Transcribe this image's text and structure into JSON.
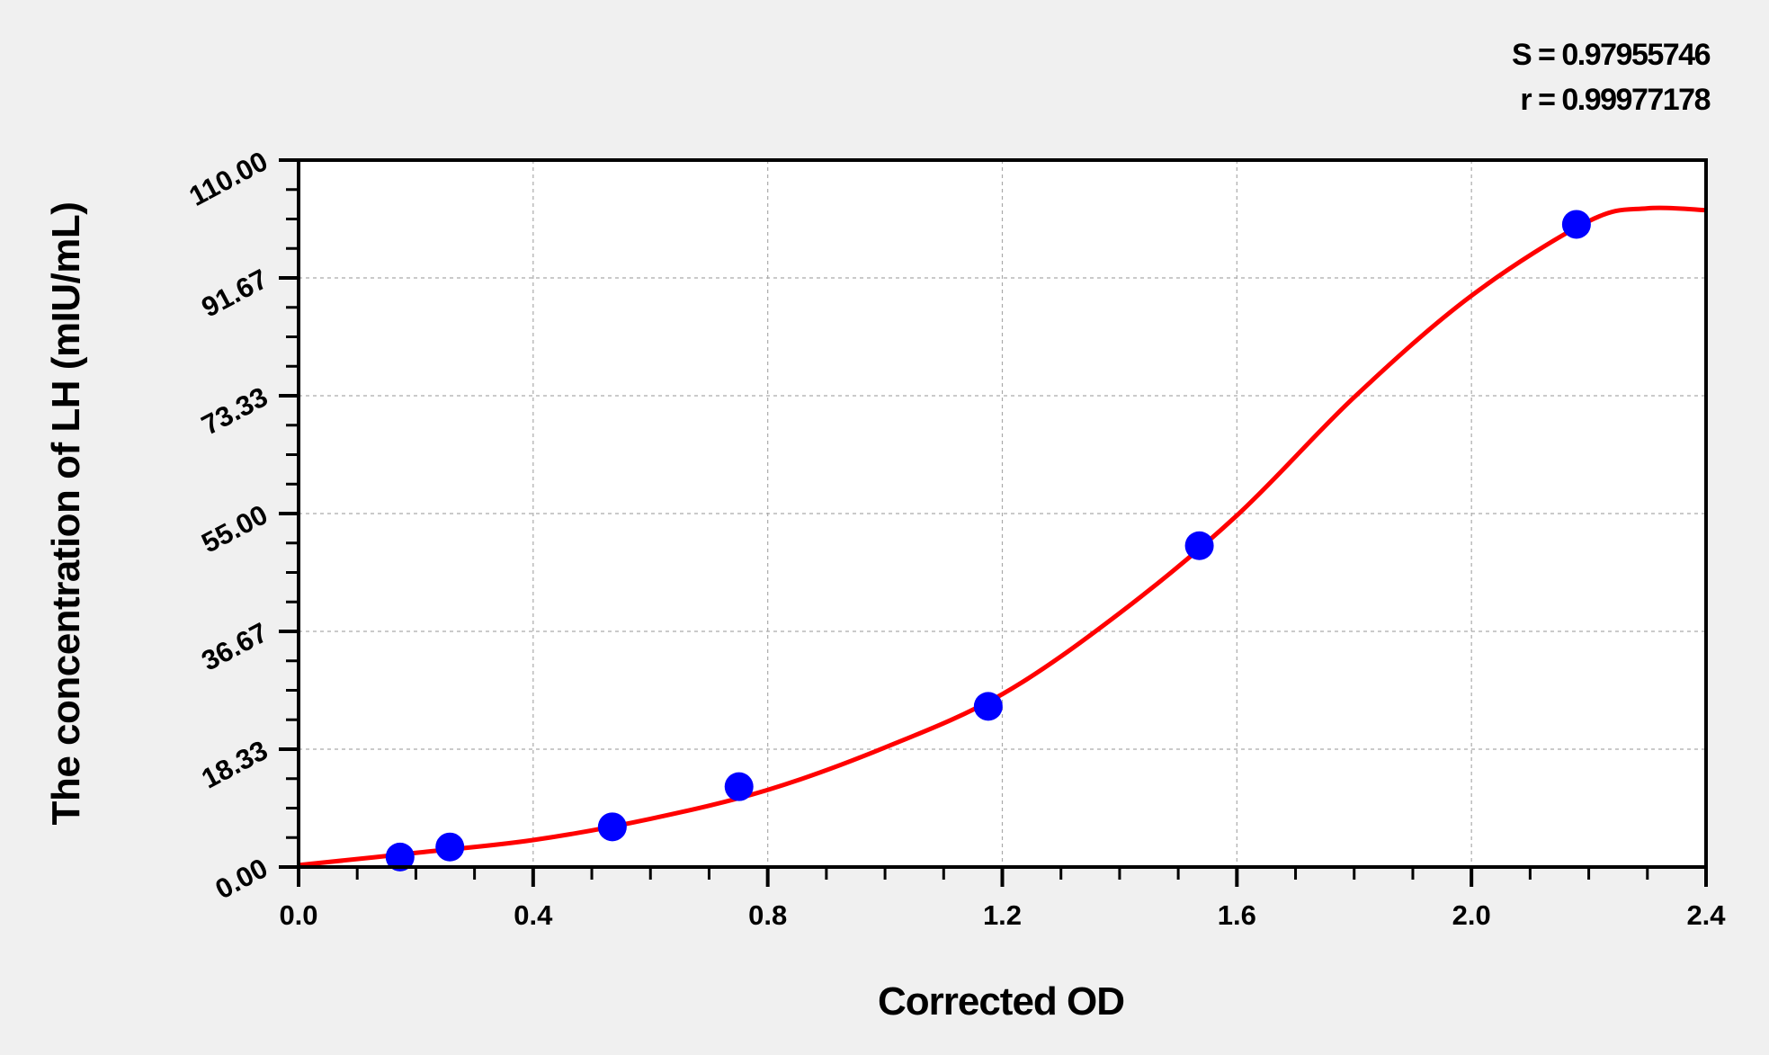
{
  "stats": {
    "s": "S = 0.97955746",
    "r": "r = 0.99977178"
  },
  "chart_data": {
    "type": "scatter",
    "xlabel": "Corrected OD",
    "ylabel": "The concentration of LH (mIU/mL)",
    "xlim": [
      0,
      2.4
    ],
    "ylim": [
      0,
      110
    ],
    "x_ticks": [
      "0.0",
      "0.4",
      "0.8",
      "1.2",
      "1.6",
      "2.0",
      "2.4"
    ],
    "y_ticks": [
      "0.00",
      "18.33",
      "36.67",
      "55.00",
      "73.33",
      "91.67",
      "110.00"
    ],
    "grid": true,
    "points": {
      "color": "#0000ff",
      "x": [
        0.173,
        0.258,
        0.535,
        0.751,
        1.176,
        1.536,
        2.179
      ],
      "y": [
        1.56,
        3.12,
        6.25,
        12.5,
        25,
        50,
        100
      ]
    },
    "fit_curve": {
      "color": "#ff0000",
      "x": [
        0,
        0.2,
        0.4,
        0.6,
        0.8,
        1.0,
        1.2,
        1.4,
        1.6,
        1.8,
        2.0,
        2.2,
        2.3,
        2.4
      ],
      "y": [
        0.3,
        2.2,
        4.2,
        7.5,
        12.0,
        18.6,
        26.9,
        39.5,
        54.7,
        73.1,
        88.9,
        100.5,
        102.5,
        102.2
      ]
    }
  }
}
